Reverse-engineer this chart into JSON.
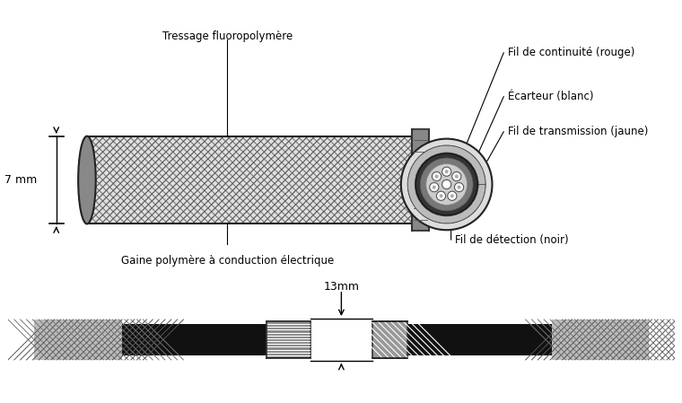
{
  "bg_color": "#ffffff",
  "labels": {
    "tressage": "Tressage fluoropolymère",
    "gaine": "Gaine polymère à conduction électrique",
    "fil_continuite": "Fil de continuité (rouge)",
    "ecarteur": "Écarteur (blanc)",
    "fil_transmission": "Fil de transmission (jaune)",
    "fil_detection": "Fil de détection (noir)",
    "dim_7mm": "7 mm",
    "dim_13mm": "13mm"
  },
  "colors": {
    "black": "#000000",
    "dark_gray": "#444444",
    "mid_gray": "#888888",
    "light_gray": "#cccccc",
    "white": "#ffffff",
    "braid_dark": "#555555",
    "braid_light": "#aaaaaa"
  }
}
